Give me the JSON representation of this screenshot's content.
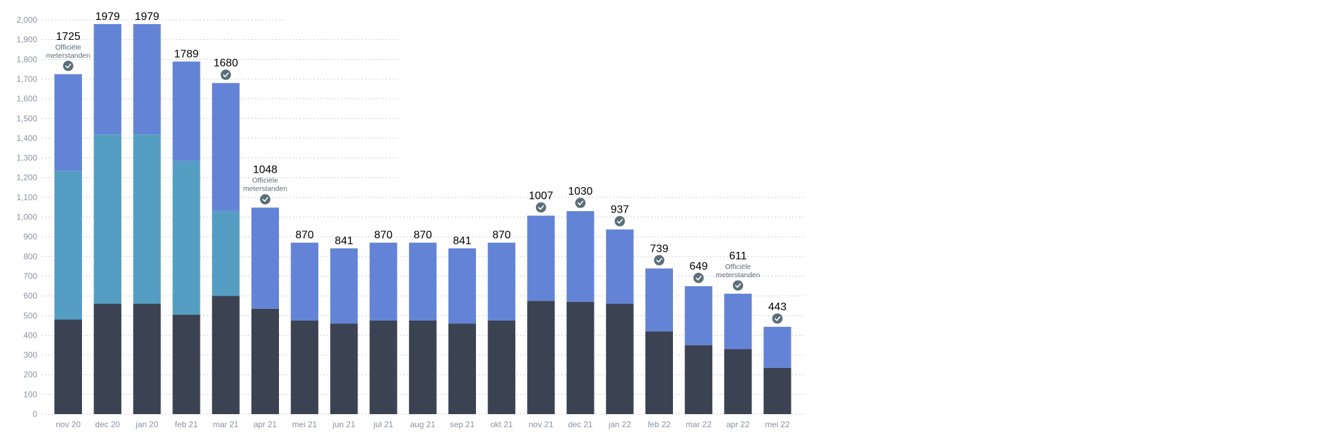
{
  "chart_data": {
    "type": "bar",
    "stacked": true,
    "categories": [
      "nov 20",
      "dec 20",
      "jan 20",
      "feb 21",
      "mar 21",
      "apr 21",
      "mei 21",
      "jun 21",
      "jul 21",
      "aug 21",
      "sep 21",
      "okt 21",
      "nov 21",
      "dec 21",
      "jan 22",
      "feb 22",
      "mar 22",
      "apr 22",
      "mei 22"
    ],
    "series": [
      {
        "color": "#3b4252",
        "values": [
          480,
          560,
          560,
          505,
          600,
          535,
          475,
          460,
          475,
          475,
          460,
          475,
          575,
          570,
          560,
          420,
          350,
          330,
          235
        ]
      },
      {
        "color": "#559ec3",
        "values": [
          755,
          860,
          860,
          780,
          430,
          0,
          0,
          0,
          0,
          0,
          0,
          0,
          0,
          0,
          0,
          0,
          0,
          0,
          0
        ]
      },
      {
        "color": "#6384d6",
        "values": [
          490,
          559,
          559,
          504,
          650,
          513,
          395,
          381,
          395,
          395,
          381,
          395,
          432,
          460,
          377,
          319,
          299,
          281,
          208
        ]
      }
    ],
    "totals": [
      "1725",
      "1979",
      "1979",
      "1789",
      "1680",
      "1048",
      "870",
      "841",
      "870",
      "870",
      "841",
      "870",
      "1007",
      "1030",
      "937",
      "739",
      "649",
      "611",
      "443"
    ],
    "checkmarks": [
      true,
      false,
      false,
      false,
      true,
      true,
      false,
      false,
      false,
      false,
      false,
      false,
      true,
      true,
      true,
      true,
      true,
      true,
      true
    ],
    "annotations": [
      {
        "index": 0,
        "lines": [
          "Officiële",
          "meterstanden"
        ]
      },
      {
        "index": 5,
        "lines": [
          "Officiële",
          "meterstanden"
        ]
      },
      {
        "index": 17,
        "lines": [
          "Officiële",
          "meterstanden"
        ]
      }
    ],
    "yticks": [
      "0",
      "100",
      "200",
      "300",
      "400",
      "500",
      "600",
      "700",
      "800",
      "900",
      "1,000",
      "1,100",
      "1,200",
      "1,300",
      "1,400",
      "1,500",
      "1,600",
      "1,700",
      "1,800",
      "1,900",
      "2,000"
    ],
    "ylim": [
      0,
      2000
    ],
    "grid": true,
    "check_icon_color": "#5b6f78"
  }
}
